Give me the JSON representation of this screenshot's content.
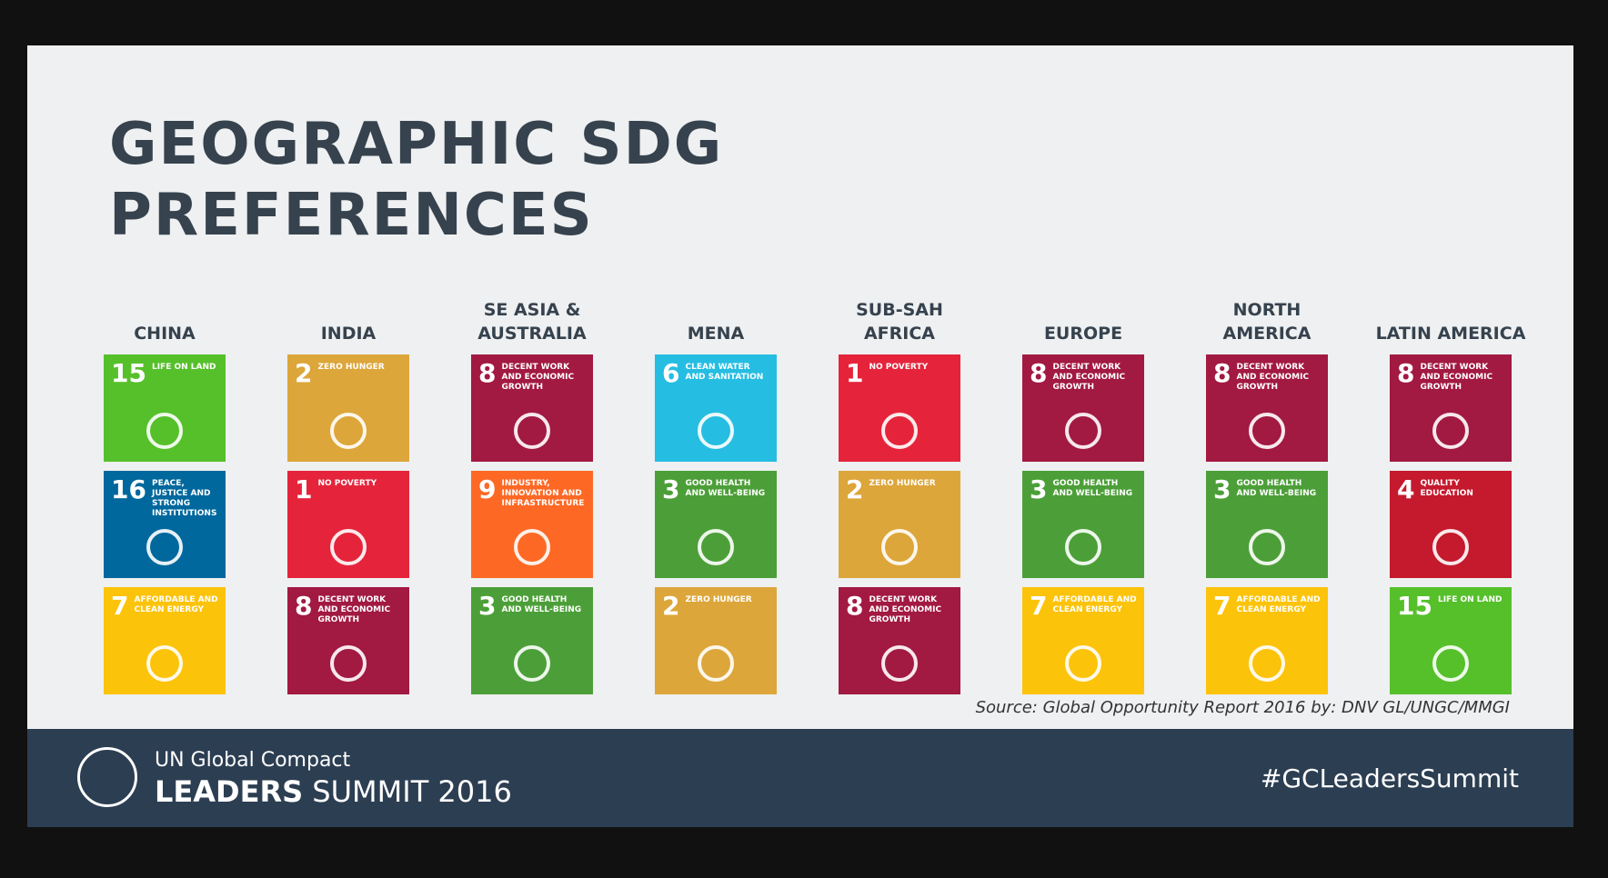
{
  "title": "GEOGRAPHIC SDG PREFERENCES",
  "regions": [
    {
      "name": "CHINA",
      "goals": [
        {
          "number": 15,
          "label": "LIFE ON LAND",
          "color": "#56C02B"
        },
        {
          "number": 16,
          "label": "PEACE, JUSTICE AND STRONG INSTITUTIONS",
          "color": "#00689D"
        },
        {
          "number": 7,
          "label": "AFFORDABLE AND CLEAN ENERGY",
          "color": "#FCC30B"
        }
      ]
    },
    {
      "name": "INDIA",
      "goals": [
        {
          "number": 2,
          "label": "ZERO HUNGER",
          "color": "#DDA63A"
        },
        {
          "number": 1,
          "label": "NO POVERTY",
          "color": "#E5243B"
        },
        {
          "number": 8,
          "label": "DECENT WORK AND ECONOMIC GROWTH",
          "color": "#A21942"
        }
      ]
    },
    {
      "name": "SE ASIA & AUSTRALIA",
      "goals": [
        {
          "number": 8,
          "label": "DECENT WORK AND ECONOMIC GROWTH",
          "color": "#A21942"
        },
        {
          "number": 9,
          "label": "INDUSTRY, INNOVATION AND INFRASTRUCTURE",
          "color": "#FD6925"
        },
        {
          "number": 3,
          "label": "GOOD HEALTH AND WELL-BEING",
          "color": "#4C9F38"
        }
      ]
    },
    {
      "name": "MENA",
      "goals": [
        {
          "number": 6,
          "label": "CLEAN WATER AND SANITATION",
          "color": "#26BDE2"
        },
        {
          "number": 3,
          "label": "GOOD HEALTH AND WELL-BEING",
          "color": "#4C9F38"
        },
        {
          "number": 2,
          "label": "ZERO HUNGER",
          "color": "#DDA63A"
        }
      ]
    },
    {
      "name": "SUB-SAH AFRICA",
      "goals": [
        {
          "number": 1,
          "label": "NO POVERTY",
          "color": "#E5243B"
        },
        {
          "number": 2,
          "label": "ZERO HUNGER",
          "color": "#DDA63A"
        },
        {
          "number": 8,
          "label": "DECENT WORK AND ECONOMIC GROWTH",
          "color": "#A21942"
        }
      ]
    },
    {
      "name": "EUROPE",
      "goals": [
        {
          "number": 8,
          "label": "DECENT WORK AND ECONOMIC GROWTH",
          "color": "#A21942"
        },
        {
          "number": 3,
          "label": "GOOD HEALTH AND WELL-BEING",
          "color": "#4C9F38"
        },
        {
          "number": 7,
          "label": "AFFORDABLE AND CLEAN ENERGY",
          "color": "#FCC30B"
        }
      ]
    },
    {
      "name": "NORTH AMERICA",
      "goals": [
        {
          "number": 8,
          "label": "DECENT WORK AND ECONOMIC GROWTH",
          "color": "#A21942"
        },
        {
          "number": 3,
          "label": "GOOD HEALTH AND WELL-BEING",
          "color": "#4C9F38"
        },
        {
          "number": 7,
          "label": "AFFORDABLE AND CLEAN ENERGY",
          "color": "#FCC30B"
        }
      ]
    },
    {
      "name": "LATIN AMERICA",
      "goals": [
        {
          "number": 8,
          "label": "DECENT WORK AND ECONOMIC GROWTH",
          "color": "#A21942"
        },
        {
          "number": 4,
          "label": "QUALITY EDUCATION",
          "color": "#C5192D"
        },
        {
          "number": 15,
          "label": "LIFE ON LAND",
          "color": "#56C02B"
        }
      ]
    }
  ],
  "source": "Source: Global Opportunity Report 2016 by: DNV GL/UNGC/MMGI",
  "footer": {
    "org": "UN Global Compact",
    "event_bold": "LEADERS",
    "event_rest": "SUMMIT 2016",
    "hashtag": "#GCLeadersSummit"
  }
}
